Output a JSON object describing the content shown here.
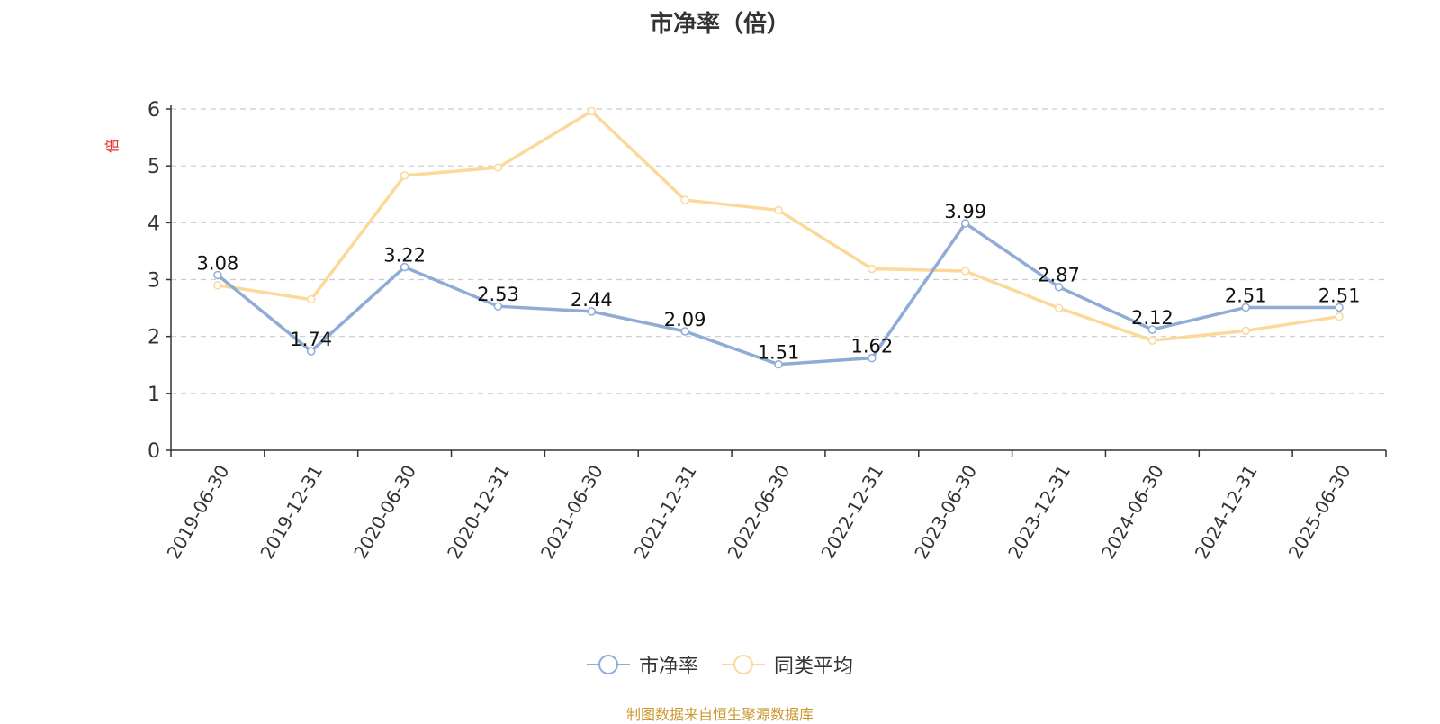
{
  "title": "市净率（倍）",
  "footer": "制图数据来自恒生聚源数据库",
  "colors": {
    "series_pb": "#8eacd6",
    "series_avg": "#fcd99a",
    "unit_label": "#e8312f",
    "footer": "#cc9933",
    "grid": "#cccccc",
    "axis": "#333333"
  },
  "chart_data": {
    "type": "line",
    "categories": [
      "2019-06-30",
      "2019-12-31",
      "2020-06-30",
      "2020-12-31",
      "2021-06-30",
      "2021-12-31",
      "2022-06-30",
      "2022-12-31",
      "2023-06-30",
      "2023-12-31",
      "2024-06-30",
      "2024-12-31",
      "2025-06-30"
    ],
    "series": [
      {
        "name": "市净率",
        "color": "#8eacd6",
        "values": [
          3.08,
          1.74,
          3.22,
          2.53,
          2.44,
          2.09,
          1.51,
          1.62,
          3.99,
          2.87,
          2.12,
          2.51,
          2.51
        ],
        "data_labels": true
      },
      {
        "name": "同类平均",
        "color": "#fcd99a",
        "values": [
          2.9,
          2.65,
          4.83,
          4.97,
          5.96,
          4.4,
          4.22,
          3.19,
          3.15,
          2.5,
          1.93,
          2.1,
          2.35
        ],
        "data_labels": false
      }
    ],
    "ylabel": "倍",
    "ylim": [
      0,
      6
    ],
    "yticks": [
      0,
      1,
      2,
      3,
      4,
      5,
      6
    ],
    "grid": true,
    "legend": "bottom-center"
  }
}
